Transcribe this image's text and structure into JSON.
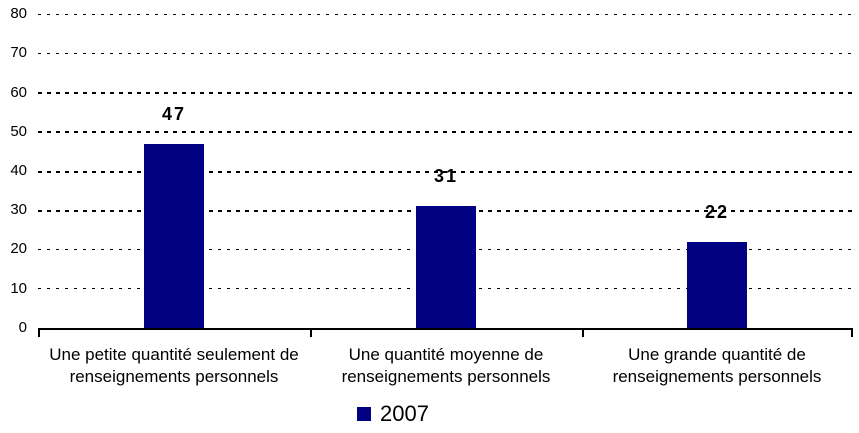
{
  "chart_data": {
    "type": "bar",
    "title": "",
    "categories": [
      "Une petite quantité seulement de renseignements personnels",
      "Une quantité moyenne de renseignements personnels",
      "Une grande quantité de renseignements personnels"
    ],
    "categories_lines": [
      [
        "Une petite quantité seulement de",
        "renseignements personnels"
      ],
      [
        "Une quantité moyenne de",
        "renseignements personnels"
      ],
      [
        "Une grande quantité de",
        "renseignements personnels"
      ]
    ],
    "series": [
      {
        "name": "2007",
        "values": [
          47,
          31,
          22
        ],
        "color": "#000080"
      }
    ],
    "value_labels": [
      "47",
      "31",
      "22"
    ],
    "xlabel": "",
    "ylabel": "",
    "ylim": [
      0,
      80
    ],
    "yticks": [
      0,
      10,
      20,
      30,
      40,
      50,
      60,
      70,
      80
    ],
    "grid": "horizontal-dotted",
    "legend_position": "bottom-center",
    "axis_color": "#000000",
    "background_color": "#ffffff"
  }
}
